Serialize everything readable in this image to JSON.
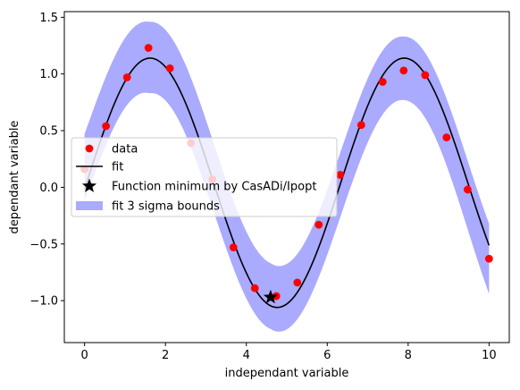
{
  "chart_data": {
    "type": "scatter",
    "xlabel": "independant variable",
    "ylabel": "dependant variable",
    "xlim": [
      -0.5,
      10.5
    ],
    "ylim": [
      -1.37,
      1.55
    ],
    "xticks": [
      0,
      2,
      4,
      6,
      8,
      10
    ],
    "yticks": [
      -1.0,
      -0.5,
      0.0,
      0.5,
      1.0,
      1.5
    ],
    "xtick_labels": [
      "0",
      "2",
      "4",
      "6",
      "8",
      "10"
    ],
    "ytick_labels": [
      "−1.0",
      "−0.5",
      "0.0",
      "0.5",
      "1.0",
      "1.5"
    ],
    "grid": false,
    "legend_position": "center-left",
    "series": [
      {
        "name": "data",
        "kind": "scatter",
        "color": "#ff0000",
        "x": [
          0.0,
          0.53,
          1.05,
          1.58,
          2.11,
          2.63,
          3.16,
          3.68,
          4.21,
          4.74,
          5.26,
          5.79,
          6.32,
          6.84,
          7.37,
          7.89,
          8.42,
          8.95,
          9.47,
          10.0
        ],
        "y": [
          0.16,
          0.54,
          0.97,
          1.23,
          1.05,
          0.39,
          0.07,
          -0.53,
          -0.89,
          -0.96,
          -0.84,
          -0.33,
          0.11,
          0.55,
          0.93,
          1.03,
          0.99,
          0.44,
          -0.02,
          -0.63
        ]
      },
      {
        "name": "fit",
        "kind": "line",
        "color": "#000000",
        "function": "1.10*sin(x - 0.05)+0.04"
      },
      {
        "name": "Function minimum by CasADi/Ipopt",
        "kind": "marker",
        "marker": "star",
        "color": "#000000",
        "x": [
          4.6
        ],
        "y": [
          -0.97
        ]
      },
      {
        "name": "fit 3 sigma bounds",
        "kind": "band",
        "color": "#aaaaff",
        "upper_at_x": [
          [
            0,
            0.47
          ],
          [
            1.6,
            1.46
          ],
          [
            4.6,
            -0.67
          ],
          [
            7.9,
            1.33
          ],
          [
            10.0,
            -0.32
          ]
        ],
        "lower_at_x": [
          [
            0,
            -0.12
          ],
          [
            1.6,
            0.83
          ],
          [
            4.6,
            -1.25
          ],
          [
            7.9,
            0.77
          ],
          [
            10.0,
            -0.94
          ]
        ]
      }
    ]
  }
}
